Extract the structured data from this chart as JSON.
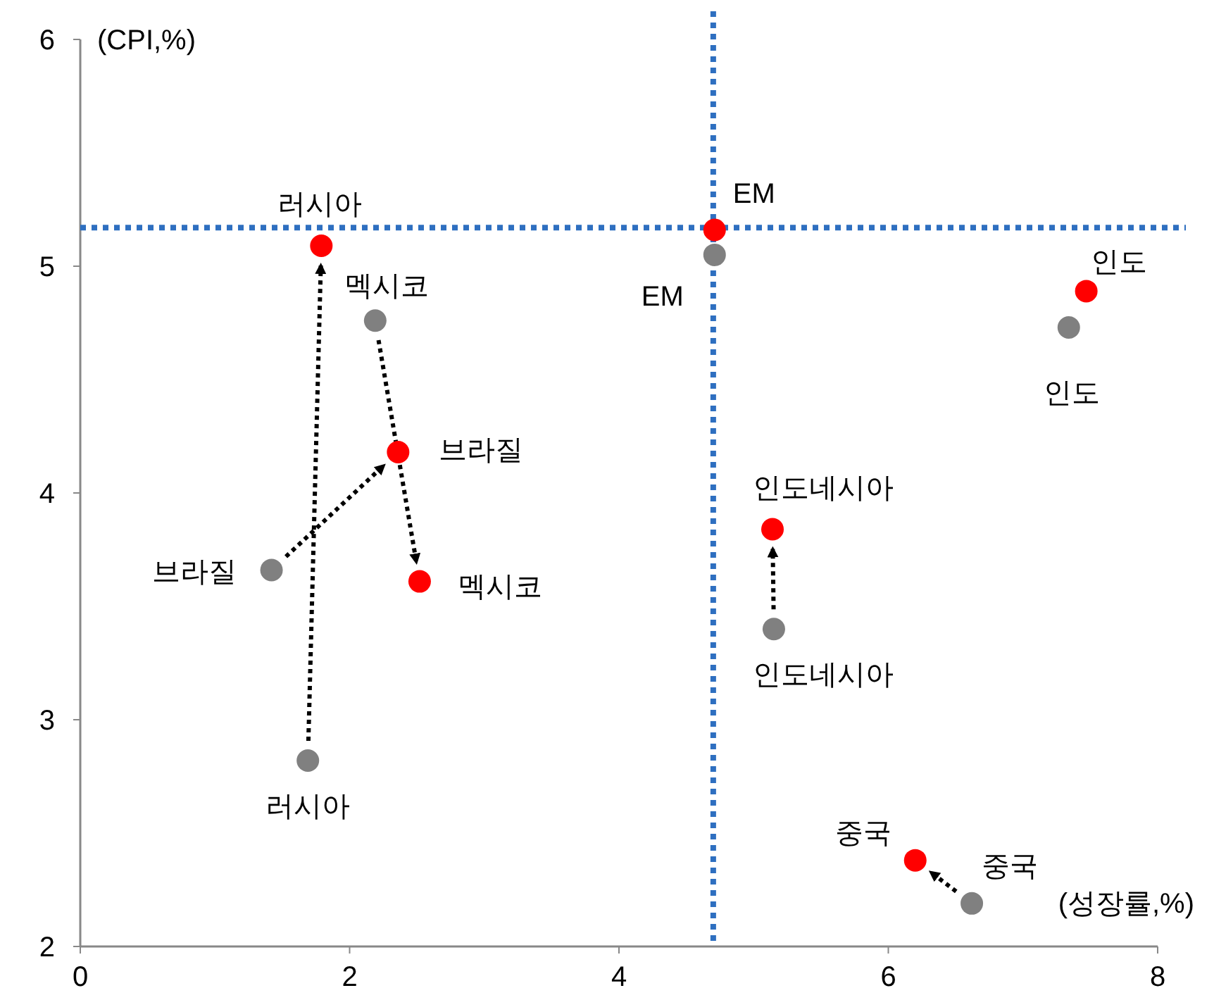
{
  "chart_data": {
    "type": "scatter",
    "xlabel": "(성장률,%)",
    "ylabel": "(CPI,%)",
    "xlim": [
      0,
      8
    ],
    "ylim": [
      2,
      6
    ],
    "xticks": [
      0,
      2,
      4,
      6,
      8
    ],
    "yticks": [
      2,
      3,
      4,
      5,
      6
    ],
    "grid": false,
    "marker": "circle",
    "series": [
      {
        "color": "#808080",
        "x": [
          1.69,
          2.19,
          1.42,
          4.71,
          7.34,
          5.15,
          6.62
        ],
        "values": [
          2.82,
          4.76,
          3.66,
          5.05,
          4.73,
          3.4,
          2.19
        ]
      },
      {
        "color": "#ff0000",
        "x": [
          1.79,
          2.52,
          2.36,
          4.71,
          7.47,
          5.14,
          6.2
        ],
        "values": [
          5.09,
          3.61,
          4.18,
          5.16,
          4.89,
          3.84,
          2.38
        ]
      }
    ],
    "ref_lines": [
      {
        "axis": "x",
        "value": 4.7,
        "color": "#2e6fc0",
        "line_style": "dotted"
      },
      {
        "axis": "y",
        "value": 5.17,
        "color": "#2e6fc0",
        "line_style": "dotted"
      }
    ],
    "annotations": [
      {
        "text": "러시아",
        "x": 1.79,
        "y": 5.09
      },
      {
        "text": "러시아",
        "x": 1.69,
        "y": 2.82
      },
      {
        "text": "멕시코",
        "x": 2.52,
        "y": 3.61
      },
      {
        "text": "멕시코",
        "x": 2.19,
        "y": 4.76
      },
      {
        "text": "브라질",
        "x": 2.36,
        "y": 4.18
      },
      {
        "text": "브라질",
        "x": 1.42,
        "y": 3.66
      },
      {
        "text": "EM",
        "x": 4.71,
        "y": 5.16
      },
      {
        "text": "EM",
        "x": 4.71,
        "y": 5.05
      },
      {
        "text": "인도",
        "x": 7.47,
        "y": 4.89
      },
      {
        "text": "인도",
        "x": 7.34,
        "y": 4.73
      },
      {
        "text": "인도네시아",
        "x": 5.14,
        "y": 3.84
      },
      {
        "text": "인도네시아",
        "x": 5.15,
        "y": 3.4
      },
      {
        "text": "중국",
        "x": 6.2,
        "y": 2.38
      },
      {
        "text": "중국",
        "x": 6.62,
        "y": 2.19
      }
    ]
  }
}
